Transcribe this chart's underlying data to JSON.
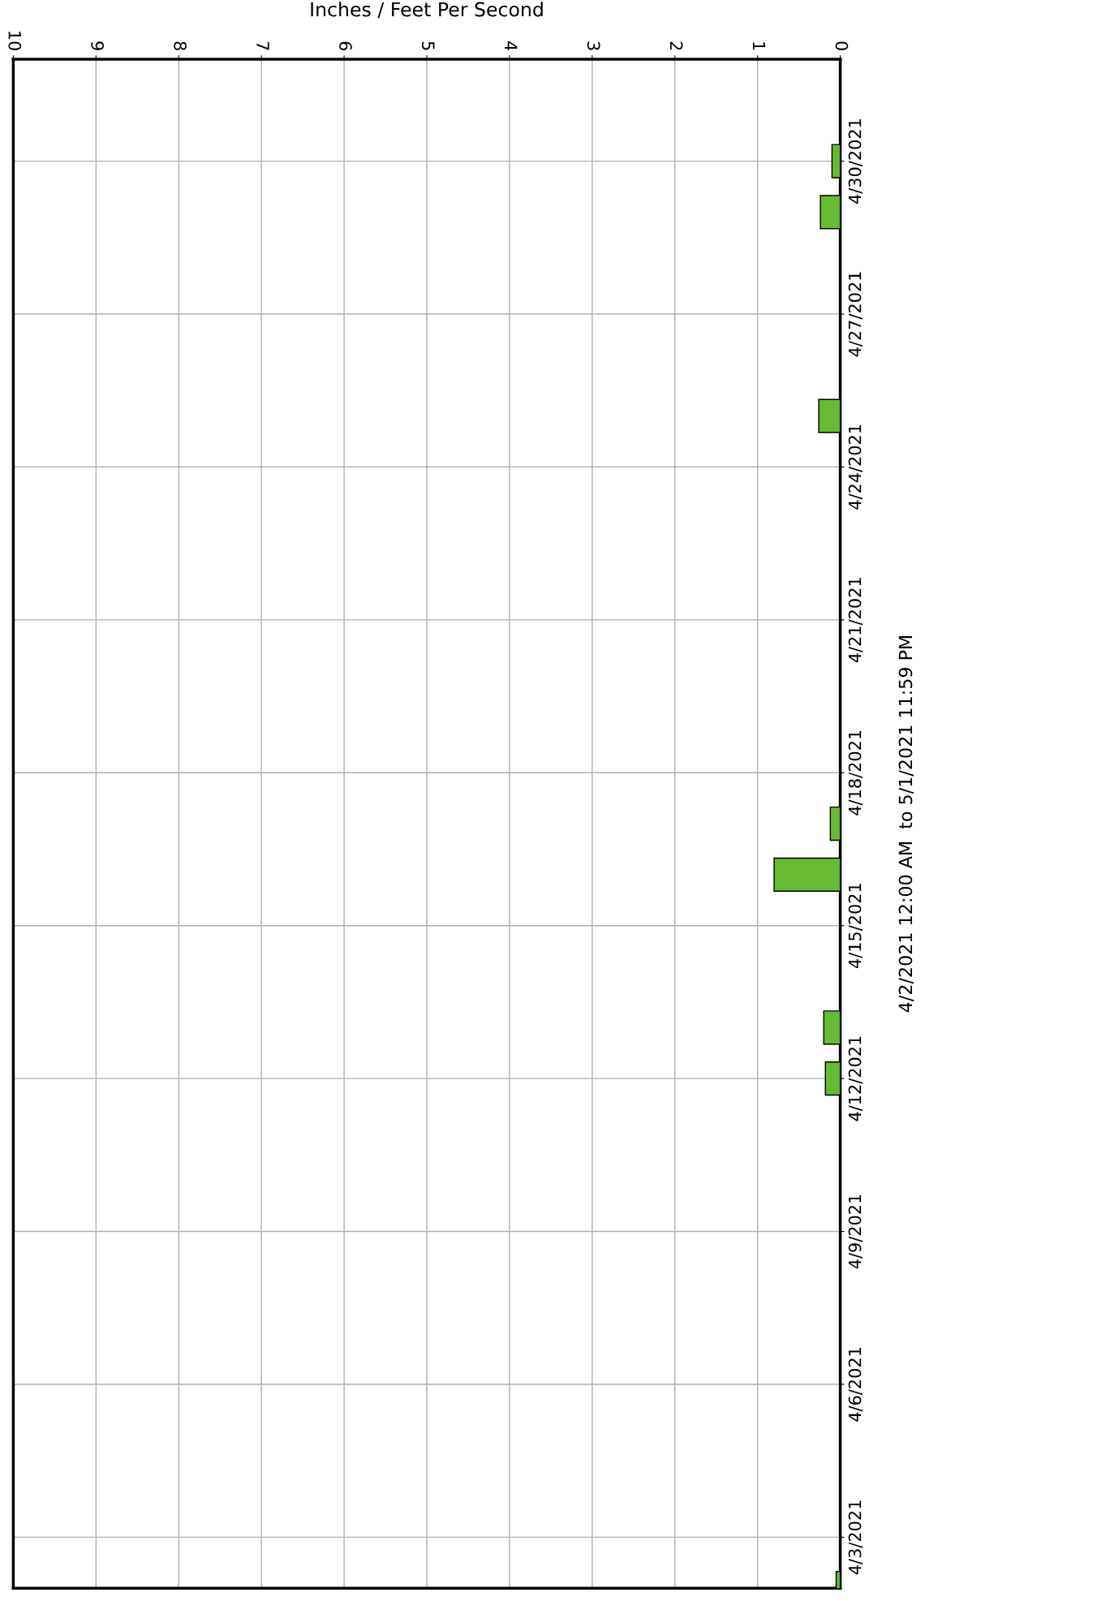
{
  "chart_data": {
    "type": "bar",
    "orientation": "horizontal",
    "xlabel": "Inches / Feet Per Second",
    "ylabel": "4/2/2021 12:00 AM  to 5/1/2021 11:59 PM",
    "x": [
      "2021-04-02",
      "2021-04-12",
      "2021-04-13",
      "2021-04-16",
      "2021-04-17",
      "2021-04-25",
      "2021-04-29",
      "2021-04-30"
    ],
    "values": [
      0.05,
      0.18,
      0.2,
      0.8,
      0.12,
      0.26,
      0.24,
      0.1
    ],
    "color": "#66bb33",
    "xlim": [
      10,
      0
    ],
    "xticks": [
      10,
      9,
      8,
      7,
      6,
      5,
      4,
      3,
      2,
      1,
      0
    ],
    "ylim": [
      "2021-04-02",
      "2021-05-01T23:59"
    ],
    "yticks": [
      {
        "value": "2021-04-03",
        "label": "4/3/2021"
      },
      {
        "value": "2021-04-06",
        "label": "4/6/2021"
      },
      {
        "value": "2021-04-09",
        "label": "4/9/2021"
      },
      {
        "value": "2021-04-12",
        "label": "4/12/2021"
      },
      {
        "value": "2021-04-15",
        "label": "4/15/2021"
      },
      {
        "value": "2021-04-18",
        "label": "4/18/2021"
      },
      {
        "value": "2021-04-21",
        "label": "4/21/2021"
      },
      {
        "value": "2021-04-24",
        "label": "4/24/2021"
      },
      {
        "value": "2021-04-27",
        "label": "4/27/2021"
      },
      {
        "value": "2021-04-30",
        "label": "4/30/2021"
      }
    ],
    "grid": true
  }
}
